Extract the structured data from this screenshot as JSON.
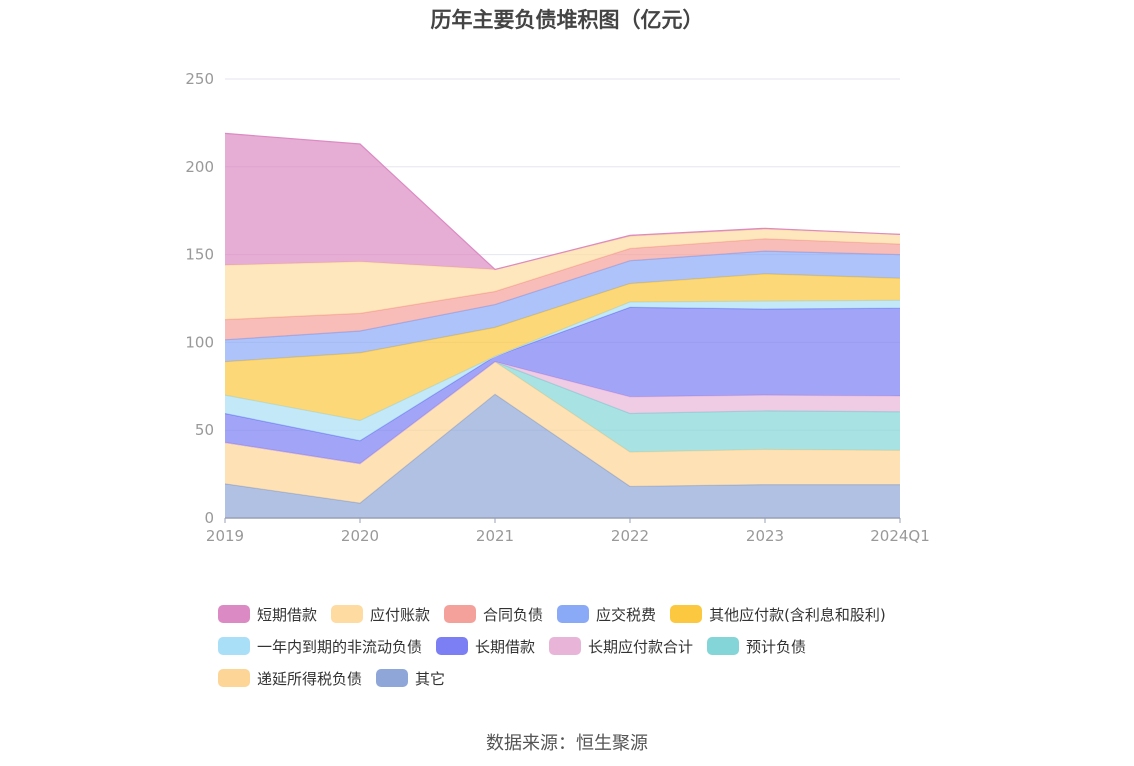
{
  "chart_data": {
    "type": "area",
    "stacked": true,
    "title": "历年主要负债堆积图（亿元）",
    "categories": [
      "2019",
      "2020",
      "2021",
      "2022",
      "2023",
      "2024Q1"
    ],
    "ylim": [
      0,
      250
    ],
    "yticks": [
      0,
      50,
      100,
      150,
      200,
      250
    ],
    "grid": true,
    "legend_position": "bottom",
    "series": [
      {
        "name": "其它",
        "color": "#8ea7d8",
        "values": [
          19.5,
          8.5,
          70.5,
          18,
          19,
          19
        ]
      },
      {
        "name": "递延所得税负债",
        "color": "#fdd596",
        "values": [
          23.5,
          22.5,
          18.5,
          19.5,
          20,
          19.5
        ]
      },
      {
        "name": "预计负债",
        "color": "#84d5d7",
        "values": [
          0,
          0,
          0,
          22,
          22,
          22
        ]
      },
      {
        "name": "长期应付款合计",
        "color": "#e8b5d9",
        "values": [
          0,
          0,
          0,
          9.5,
          9,
          9
        ]
      },
      {
        "name": "长期借款",
        "color": "#7b7ff3",
        "values": [
          16.5,
          13,
          3,
          51,
          49,
          50
        ]
      },
      {
        "name": "一年内到期的非流动负债",
        "color": "#a9dff7",
        "values": [
          10.5,
          11.5,
          0,
          3,
          4.5,
          4.5
        ]
      },
      {
        "name": "其他应付款(含利息和股利)",
        "color": "#fbc83f",
        "values": [
          19,
          38.5,
          16.5,
          10.5,
          15.5,
          12.5
        ]
      },
      {
        "name": "应交税费",
        "color": "#8aa9f7",
        "values": [
          12.5,
          12.5,
          13,
          13,
          13,
          13.5
        ]
      },
      {
        "name": "合同负债",
        "color": "#f5a19b",
        "values": [
          11.5,
          10,
          7.5,
          7,
          7,
          6
        ]
      },
      {
        "name": "应付账款",
        "color": "#fedba1",
        "values": [
          31,
          29.5,
          12.5,
          7,
          5.5,
          5.5
        ]
      },
      {
        "name": "短期借款",
        "color": "#dc8ac3",
        "values": [
          75,
          67,
          0,
          0.5,
          0.5,
          0
        ]
      }
    ],
    "legend": [
      [
        "短期借款",
        "应付账款",
        "合同负债",
        "应交税费",
        "其他应付款(含利息和股利)"
      ],
      [
        "一年内到期的非流动负债",
        "长期借款",
        "长期应付款合计",
        "预计负债"
      ],
      [
        "递延所得税负债",
        "其它"
      ]
    ]
  },
  "colors": {
    "短期借款": "#dc8ac3",
    "应付账款": "#fedba1",
    "合同负债": "#f5a19b",
    "应交税费": "#8aa9f7",
    "其他应付款(含利息和股利)": "#fbc83f",
    "一年内到期的非流动负债": "#a9dff7",
    "长期借款": "#7b7ff3",
    "长期应付款合计": "#e8b5d9",
    "预计负债": "#84d5d7",
    "递延所得税负债": "#fdd596",
    "其它": "#8ea7d8"
  },
  "source": "数据来源：恒生聚源"
}
